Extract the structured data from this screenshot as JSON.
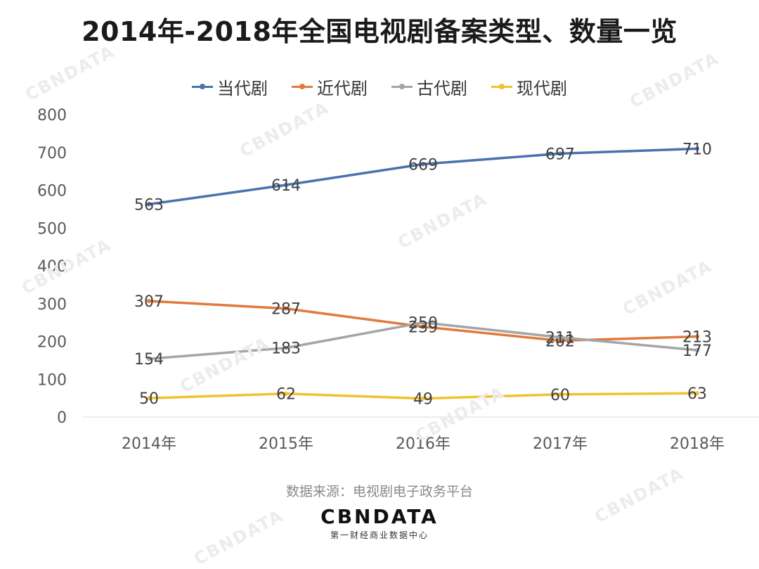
{
  "title": "2014年-2018年全国电视剧备案类型、数量一览",
  "source": "数据来源：电视剧电子政务平台",
  "brand": {
    "name": "CBNDATA",
    "tagline": "第一财经商业数据中心"
  },
  "watermark_text": "CBNDATA",
  "chart_data": {
    "type": "line",
    "title": "2014年-2018年全国电视剧备案类型、数量一览",
    "categories": [
      "2014年",
      "2015年",
      "2016年",
      "2017年",
      "2018年"
    ],
    "ylim": [
      0,
      800
    ],
    "yticks": [
      "0",
      "100",
      "200",
      "300",
      "400",
      "500",
      "600",
      "700",
      "800"
    ],
    "ytick_values": [
      0,
      100,
      200,
      300,
      400,
      500,
      600,
      700,
      800
    ],
    "xlabel": "",
    "ylabel": "",
    "legend_position": "top",
    "grid": false,
    "series": [
      {
        "name": "当代剧",
        "color": "#4a72b0",
        "values": [
          563,
          614,
          669,
          697,
          710
        ]
      },
      {
        "name": "近代剧",
        "color": "#e07b39",
        "values": [
          307,
          287,
          239,
          202,
          213
        ]
      },
      {
        "name": "古代剧",
        "color": "#a5a5a5",
        "values": [
          154,
          183,
          250,
          211,
          177
        ]
      },
      {
        "name": "现代剧",
        "color": "#f2c12e",
        "values": [
          50,
          62,
          49,
          60,
          63
        ]
      }
    ]
  }
}
